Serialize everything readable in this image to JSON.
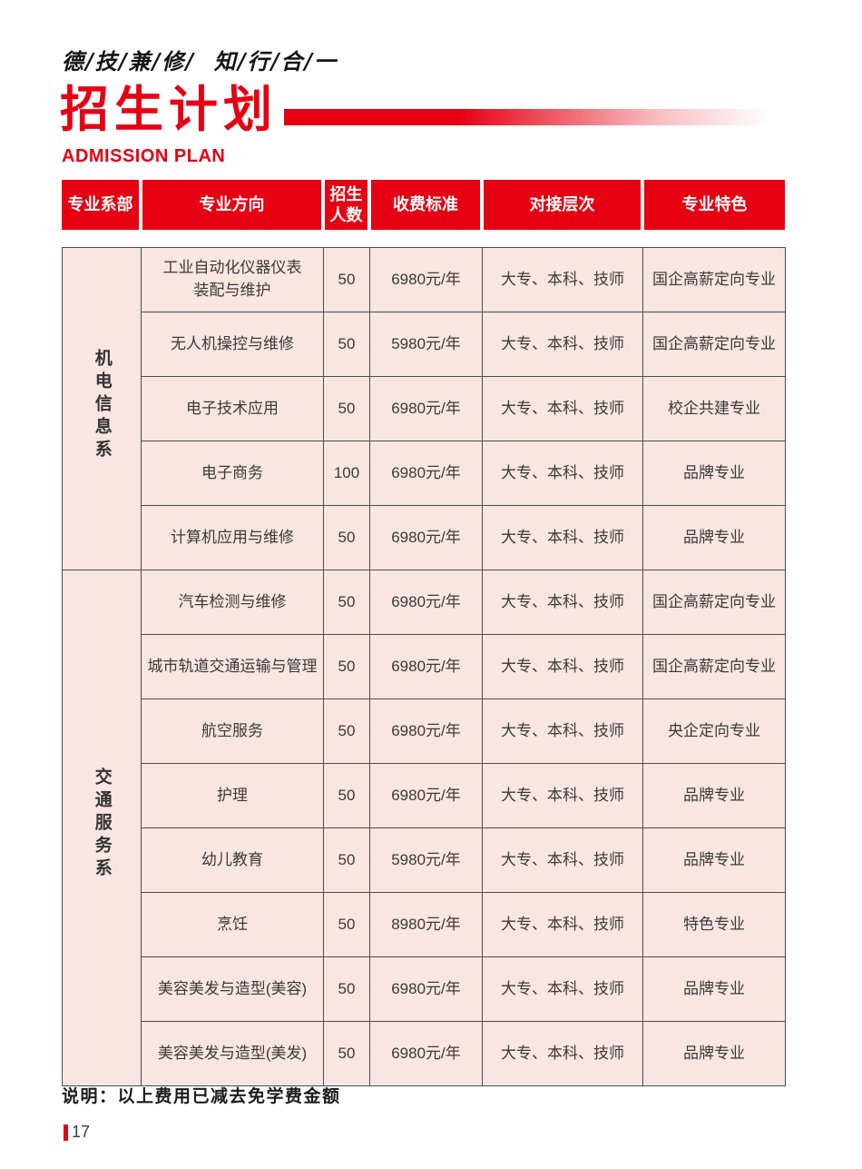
{
  "page": {
    "motto": "德/技/兼/修/  知/行/合/一",
    "title": "招生计划",
    "subtitle": "ADMISSION PLAN",
    "note": "说明：以上费用已减去免学费金额",
    "page_number": "17"
  },
  "colors": {
    "accent_red": "#e60012",
    "row_pink": "#f9e5e2",
    "border_gray": "#4d4d4d"
  },
  "table": {
    "headers": [
      "专业系部",
      "专业方向",
      "招生人数",
      "收费标准",
      "对接层次",
      "专业特色"
    ],
    "departments": [
      {
        "name": "机电信息系",
        "rows": [
          {
            "major": "工业自动化仪器仪表\n装配与维护",
            "quota": "50",
            "fee": "6980元/年",
            "levels": "大专、本科、技师",
            "feature": "国企高薪定向专业"
          },
          {
            "major": "无人机操控与维修",
            "quota": "50",
            "fee": "5980元/年",
            "levels": "大专、本科、技师",
            "feature": "国企高薪定向专业"
          },
          {
            "major": "电子技术应用",
            "quota": "50",
            "fee": "6980元/年",
            "levels": "大专、本科、技师",
            "feature": "校企共建专业"
          },
          {
            "major": "电子商务",
            "quota": "100",
            "fee": "6980元/年",
            "levels": "大专、本科、技师",
            "feature": "品牌专业"
          },
          {
            "major": "计算机应用与维修",
            "quota": "50",
            "fee": "6980元/年",
            "levels": "大专、本科、技师",
            "feature": "品牌专业"
          }
        ]
      },
      {
        "name": "交通服务系",
        "rows": [
          {
            "major": "汽车检测与维修",
            "quota": "50",
            "fee": "6980元/年",
            "levels": "大专、本科、技师",
            "feature": "国企高薪定向专业"
          },
          {
            "major": "城市轨道交通运输与管理",
            "quota": "50",
            "fee": "6980元/年",
            "levels": "大专、本科、技师",
            "feature": "国企高薪定向专业"
          },
          {
            "major": "航空服务",
            "quota": "50",
            "fee": "6980元/年",
            "levels": "大专、本科、技师",
            "feature": "央企定向专业"
          },
          {
            "major": "护理",
            "quota": "50",
            "fee": "6980元/年",
            "levels": "大专、本科、技师",
            "feature": "品牌专业"
          },
          {
            "major": "幼儿教育",
            "quota": "50",
            "fee": "5980元/年",
            "levels": "大专、本科、技师",
            "feature": "品牌专业"
          },
          {
            "major": "烹饪",
            "quota": "50",
            "fee": "8980元/年",
            "levels": "大专、本科、技师",
            "feature": "特色专业"
          },
          {
            "major": "美容美发与造型(美容)",
            "quota": "50",
            "fee": "6980元/年",
            "levels": "大专、本科、技师",
            "feature": "品牌专业"
          },
          {
            "major": "美容美发与造型(美发)",
            "quota": "50",
            "fee": "6980元/年",
            "levels": "大专、本科、技师",
            "feature": "品牌专业"
          }
        ]
      }
    ]
  }
}
